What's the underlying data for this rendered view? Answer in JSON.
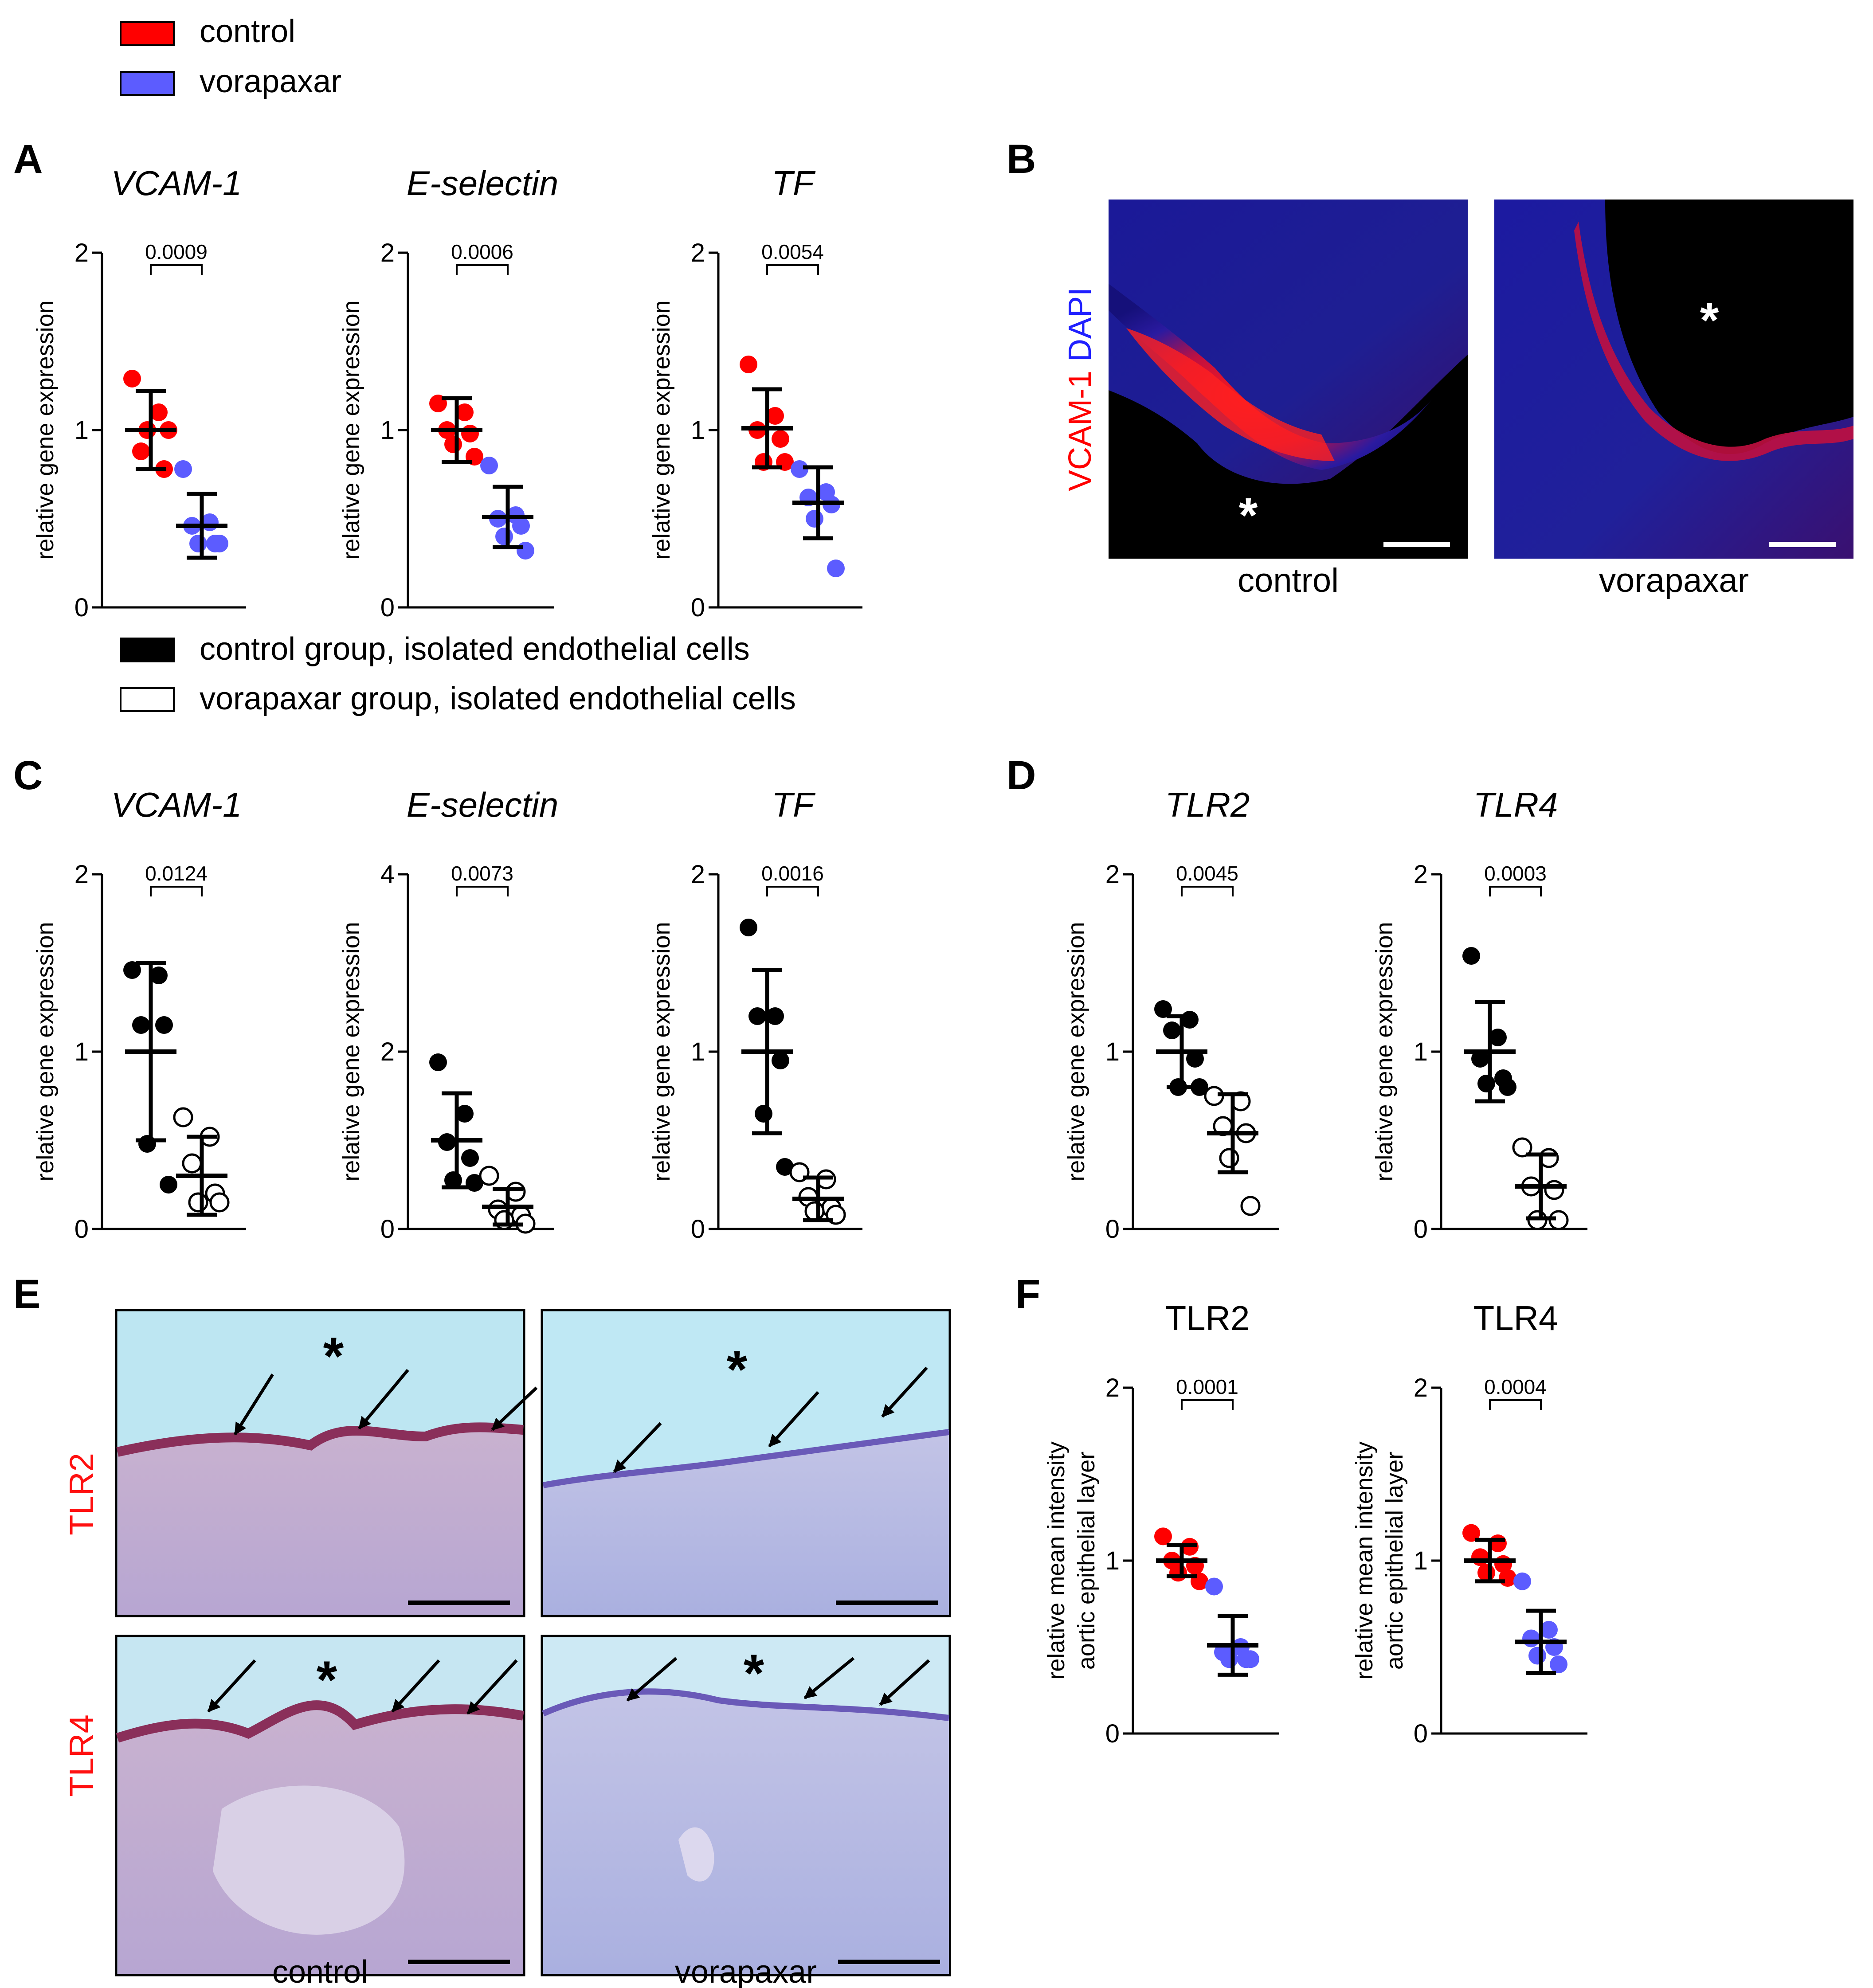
{
  "legends": {
    "top": [
      {
        "label": "control",
        "color": "#ff0000"
      },
      {
        "label": "vorapaxar",
        "color": "#5c5cff"
      }
    ],
    "middle": [
      {
        "label": "control group, isolated endothelial cells",
        "fill": "black"
      },
      {
        "label": "vorapaxar group, isolated endothelial cells",
        "fill": "white"
      }
    ]
  },
  "panels": {
    "A": "A",
    "B": "B",
    "C": "C",
    "D": "D",
    "E": "E",
    "F": "F"
  },
  "micro": {
    "B": {
      "side_label_part1": "VCAM-1",
      "side_label_part2": "DAPI",
      "captions": [
        "control",
        "vorapaxar"
      ],
      "asterisk": "*"
    },
    "E": {
      "row_labels": [
        "TLR2",
        "TLR4"
      ],
      "captions": [
        "control",
        "vorapaxar"
      ],
      "asterisk": "*"
    }
  },
  "chart_data": [
    {
      "id": "A1",
      "type": "scatter",
      "title": "VCAM-1",
      "title_italic": true,
      "ylabel": "relative gene expression",
      "ylim": [
        0,
        2
      ],
      "yticks": [
        "0",
        "1",
        "2"
      ],
      "pvalue": "0.0009",
      "groups": [
        {
          "fill": "#ff0000",
          "mean": 1.0,
          "sd": 0.22,
          "points": [
            1.29,
            1.1,
            0.88,
            0.78,
            1.0,
            1.0
          ]
        },
        {
          "fill": "#5c5cff",
          "mean": 0.46,
          "sd": 0.18,
          "points": [
            0.78,
            0.48,
            0.46,
            0.36,
            0.36,
            0.36
          ]
        }
      ]
    },
    {
      "id": "A2",
      "type": "scatter",
      "title": "E-selectin",
      "title_italic": true,
      "ylabel": "relative gene expression",
      "ylim": [
        0,
        2
      ],
      "yticks": [
        "0",
        "1",
        "2"
      ],
      "pvalue": "0.0006",
      "groups": [
        {
          "fill": "#ff0000",
          "mean": 1.0,
          "sd": 0.18,
          "points": [
            1.15,
            1.1,
            1.0,
            0.98,
            0.92,
            0.85
          ]
        },
        {
          "fill": "#5c5cff",
          "mean": 0.51,
          "sd": 0.17,
          "points": [
            0.8,
            0.52,
            0.5,
            0.46,
            0.4,
            0.32
          ]
        }
      ]
    },
    {
      "id": "A3",
      "type": "scatter",
      "title": "TF",
      "title_italic": true,
      "ylabel": "relative gene expression",
      "ylim": [
        0,
        2
      ],
      "yticks": [
        "0",
        "1",
        "2"
      ],
      "pvalue": "0.0054",
      "groups": [
        {
          "fill": "#ff0000",
          "mean": 1.01,
          "sd": 0.22,
          "points": [
            1.37,
            1.08,
            1.0,
            0.95,
            0.82,
            0.82
          ]
        },
        {
          "fill": "#5c5cff",
          "mean": 0.59,
          "sd": 0.2,
          "points": [
            0.78,
            0.65,
            0.62,
            0.58,
            0.5,
            0.22
          ]
        }
      ]
    },
    {
      "id": "C1",
      "type": "scatter",
      "title": "VCAM-1",
      "title_italic": true,
      "ylabel": "relative gene expression",
      "ylim": [
        0,
        2
      ],
      "yticks": [
        "0",
        "1",
        "2"
      ],
      "pvalue": "0.0124",
      "groups": [
        {
          "fill": "#000000",
          "mean": 1.0,
          "sd": 0.5,
          "points": [
            1.46,
            1.43,
            1.15,
            1.15,
            0.48,
            0.25
          ]
        },
        {
          "fill": "#ffffff",
          "mean": 0.3,
          "sd": 0.22,
          "points": [
            0.63,
            0.52,
            0.37,
            0.2,
            0.15,
            0.15
          ]
        }
      ]
    },
    {
      "id": "C2",
      "type": "scatter",
      "title": "E-selectin",
      "title_italic": true,
      "ylabel": "relative gene expression",
      "ylim": [
        0,
        4
      ],
      "yticks": [
        "0",
        "2",
        "4"
      ],
      "pvalue": "0.0073",
      "groups": [
        {
          "fill": "#000000",
          "mean": 1.0,
          "sd": 0.53,
          "points": [
            1.88,
            1.3,
            0.98,
            0.8,
            0.55,
            0.52
          ]
        },
        {
          "fill": "#ffffff",
          "mean": 0.25,
          "sd": 0.2,
          "points": [
            0.6,
            0.42,
            0.22,
            0.15,
            0.1,
            0.06
          ]
        }
      ]
    },
    {
      "id": "C3",
      "type": "scatter",
      "title": "TF",
      "title_italic": true,
      "ylabel": "relative gene expression",
      "ylim": [
        0,
        2
      ],
      "yticks": [
        "0",
        "1",
        "2"
      ],
      "pvalue": "0.0016",
      "groups": [
        {
          "fill": "#000000",
          "mean": 1.0,
          "sd": 0.46,
          "points": [
            1.7,
            1.2,
            1.2,
            0.95,
            0.65,
            0.35
          ]
        },
        {
          "fill": "#ffffff",
          "mean": 0.17,
          "sd": 0.12,
          "points": [
            0.32,
            0.28,
            0.18,
            0.12,
            0.1,
            0.08
          ]
        }
      ]
    },
    {
      "id": "D1",
      "type": "scatter",
      "title": "TLR2",
      "title_italic": true,
      "ylabel": "relative gene expression",
      "ylim": [
        0,
        2
      ],
      "yticks": [
        "0",
        "1",
        "2"
      ],
      "pvalue": "0.0045",
      "groups": [
        {
          "fill": "#000000",
          "mean": 1.0,
          "sd": 0.2,
          "points": [
            1.24,
            1.18,
            1.12,
            0.96,
            0.8,
            0.8
          ]
        },
        {
          "fill": "#ffffff",
          "mean": 0.54,
          "sd": 0.22,
          "points": [
            0.75,
            0.72,
            0.58,
            0.54,
            0.4,
            0.13
          ]
        }
      ]
    },
    {
      "id": "D2",
      "type": "scatter",
      "title": "TLR4",
      "title_italic": true,
      "ylabel": "relative gene expression",
      "ylim": [
        0,
        2
      ],
      "yticks": [
        "0",
        "1",
        "2"
      ],
      "pvalue": "0.0003",
      "groups": [
        {
          "fill": "#000000",
          "mean": 1.0,
          "sd": 0.28,
          "points": [
            1.54,
            1.08,
            0.96,
            0.85,
            0.82,
            0.8
          ]
        },
        {
          "fill": "#ffffff",
          "mean": 0.24,
          "sd": 0.18,
          "points": [
            0.46,
            0.4,
            0.24,
            0.22,
            0.05,
            0.05
          ]
        }
      ]
    },
    {
      "id": "F1",
      "type": "scatter",
      "title": "TLR2",
      "title_italic": false,
      "ylabel_lines": [
        "relative mean intensity",
        "aortic epithelial layer"
      ],
      "ylim": [
        0,
        2
      ],
      "yticks": [
        "0",
        "1",
        "2"
      ],
      "pvalue": "0.0001",
      "groups": [
        {
          "fill": "#ff0000",
          "mean": 1.0,
          "sd": 0.09,
          "points": [
            1.14,
            1.08,
            1.0,
            0.97,
            0.93,
            0.88
          ]
        },
        {
          "fill": "#5c5cff",
          "mean": 0.51,
          "sd": 0.17,
          "points": [
            0.85,
            0.5,
            0.47,
            0.43,
            0.43,
            0.43
          ]
        }
      ]
    },
    {
      "id": "F2",
      "type": "scatter",
      "title": "TLR4",
      "title_italic": false,
      "ylabel_lines": [
        "relative mean intensity",
        "aortic epithelial layer"
      ],
      "ylim": [
        0,
        2
      ],
      "yticks": [
        "0",
        "1",
        "2"
      ],
      "pvalue": "0.0004",
      "groups": [
        {
          "fill": "#ff0000",
          "mean": 1.0,
          "sd": 0.12,
          "points": [
            1.16,
            1.1,
            1.02,
            0.98,
            0.93,
            0.9
          ]
        },
        {
          "fill": "#5c5cff",
          "mean": 0.53,
          "sd": 0.18,
          "points": [
            0.88,
            0.6,
            0.55,
            0.5,
            0.45,
            0.4
          ]
        }
      ]
    }
  ]
}
